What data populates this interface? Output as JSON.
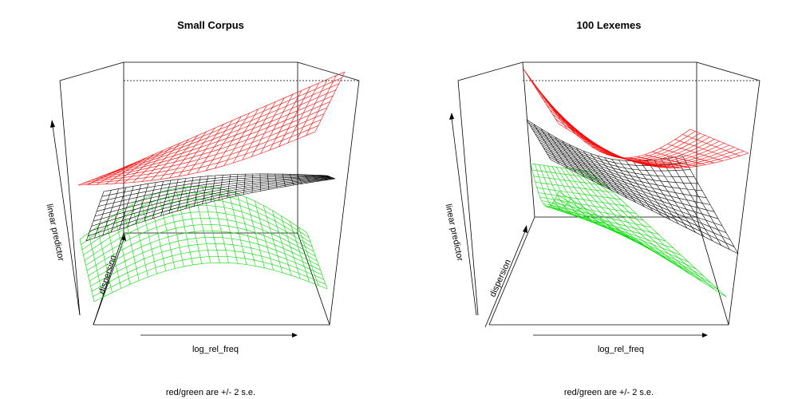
{
  "colors": {
    "upper": "#ff0000",
    "fit": "#000000",
    "lower": "#00dd00"
  },
  "chart_data": [
    {
      "type": "surface",
      "title": "Small Corpus",
      "xlabel": "log_rel_freq",
      "ylabel": "dispersion",
      "zlabel": "linear predictor",
      "caption": "red/green are +/- 2 s.e.",
      "series": [
        {
          "role": "upper",
          "note": "+2 s.e."
        },
        {
          "role": "fit",
          "note": "fit"
        },
        {
          "role": "lower",
          "note": "-2 s.e."
        }
      ]
    },
    {
      "type": "surface",
      "title": "100 Lexemes",
      "xlabel": "log_rel_freq",
      "ylabel": "dispersion",
      "zlabel": "linear predictor",
      "caption": "red/green are +/- 2 s.e.",
      "series": [
        {
          "role": "upper",
          "note": "+2 s.e."
        },
        {
          "role": "fit",
          "note": "fit"
        },
        {
          "role": "lower",
          "note": "-2 s.e."
        }
      ]
    }
  ]
}
